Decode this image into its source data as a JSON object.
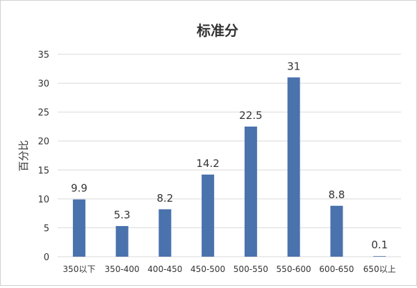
{
  "chart_data": {
    "type": "bar",
    "title": "标准分",
    "xlabel": "",
    "ylabel": "百分比",
    "categories": [
      "350以下",
      "350-400",
      "400-450",
      "450-500",
      "500-550",
      "550-600",
      "600-650",
      "650以上"
    ],
    "values": [
      9.9,
      5.3,
      8.2,
      14.2,
      22.5,
      31,
      8.8,
      0.1
    ],
    "data_labels": [
      "9.9",
      "5.3",
      "8.2",
      "14.2",
      "22.5",
      "31",
      "8.8",
      "0.1"
    ],
    "ylim": [
      0,
      35
    ],
    "yticks": [
      0,
      5,
      10,
      15,
      20,
      25,
      30,
      35
    ],
    "ytick_labels": [
      "0",
      "5",
      "10",
      "15",
      "20",
      "25",
      "30",
      "35"
    ],
    "grid": true,
    "legend": "none",
    "bar_color": "#4a72ad",
    "grid_color": "#d9d9d9",
    "text_color": "#333333"
  }
}
